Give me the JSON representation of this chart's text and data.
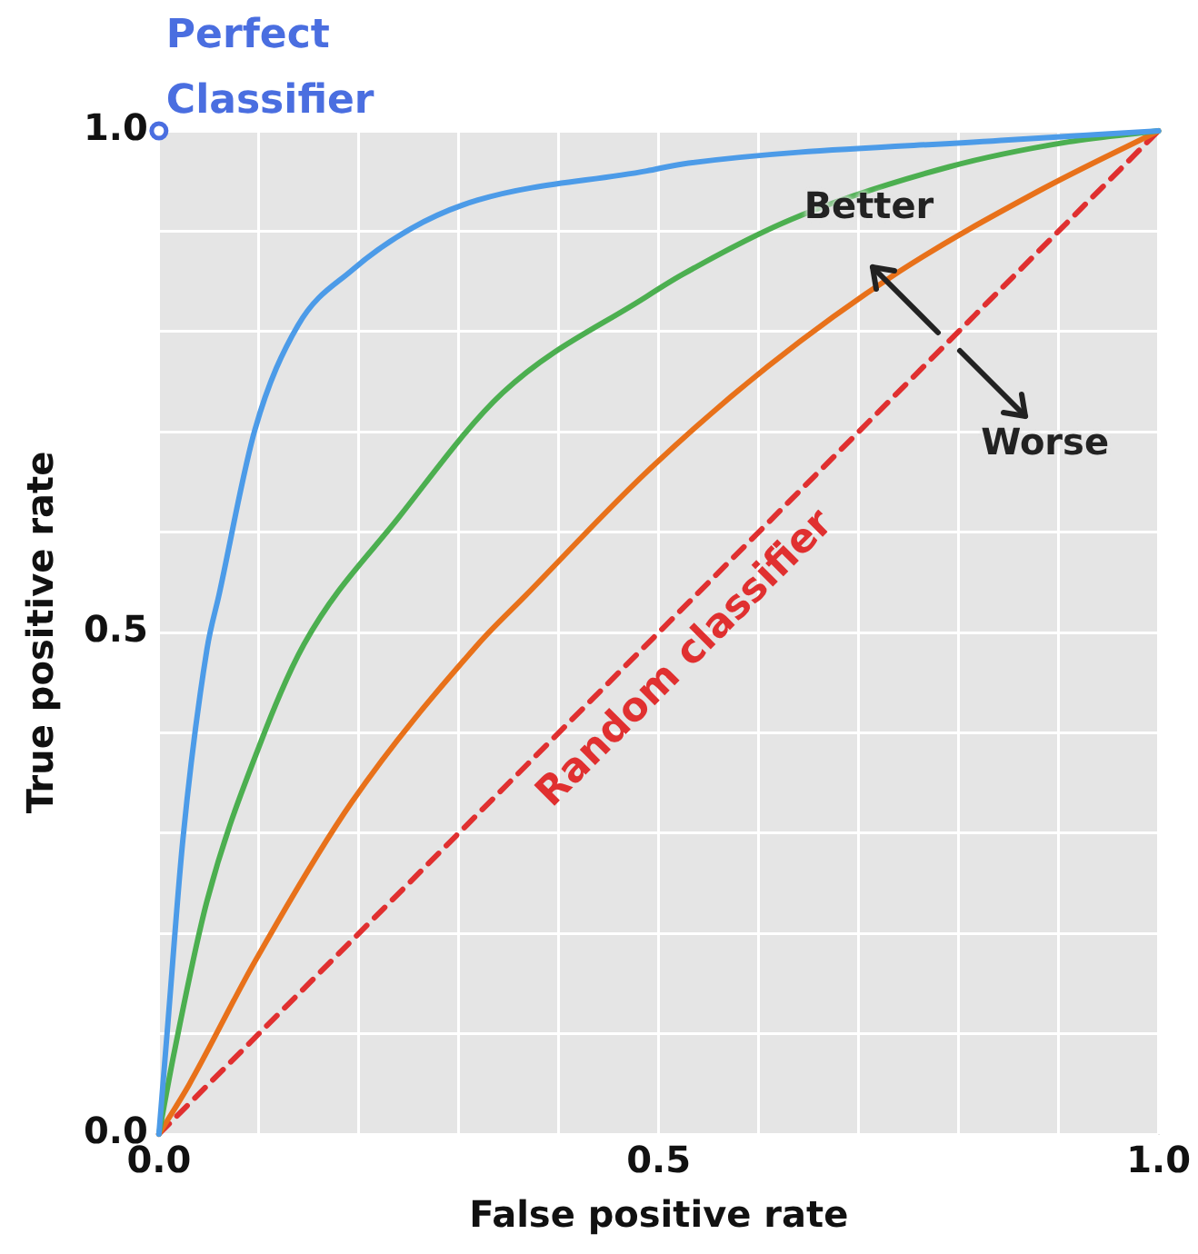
{
  "chart_data": {
    "type": "line",
    "xlabel": "False positive rate",
    "ylabel": "True positive rate",
    "annotations": [
      "Better",
      {
        "text": "Worse",
        "x": 0.79,
        "y": 0.79
      }
    ],
    "xlim": [
      0,
      1
    ],
    "ylim": [
      0,
      1
    ],
    "xticks": [
      {
        "value": 0,
        "label": "0.0"
      },
      {
        "value": 0.1,
        "label": null
      },
      {
        "value": 0.2,
        "label": null
      },
      {
        "value": 0.3,
        "label": null
      },
      {
        "value": 0.4,
        "label": null
      },
      {
        "value": 0.5,
        "label": "0.5"
      },
      {
        "value": 0.6,
        "label": null
      },
      {
        "value": 0.7,
        "label": null
      },
      {
        "value": 0.8,
        "label": null
      },
      {
        "value": 0.9,
        "label": null
      },
      {
        "value": 1,
        "label": "1.0"
      }
    ],
    "yticks": [
      {
        "value": 0,
        "label": "0.0"
      },
      {
        "value": 0.1,
        "label": null
      },
      {
        "value": 0.2,
        "label": null
      },
      {
        "value": 0.3,
        "label": null
      },
      {
        "value": 0.4,
        "label": null
      },
      {
        "value": 0.5,
        "label": "0.5"
      },
      {
        "value": 0.6,
        "label": null
      },
      {
        "value": 0.7,
        "label": null
      },
      {
        "value": 0.8,
        "label": null
      },
      {
        "value": 0.9,
        "label": null
      },
      {
        "value": 1,
        "label": "1.0"
      }
    ],
    "grid": true,
    "legend": false,
    "marker": "none",
    "series": [
      {
        "type": "line",
        "color": "#4c9be8",
        "x": [
          0,
          0.009,
          0.024,
          0.048,
          0.06,
          0.096,
          0.139,
          0.193,
          0.253,
          0.319,
          0.488,
          0.524,
          0.85,
          1
        ],
        "values": [
          0,
          0.111,
          0.294,
          0.483,
          0.537,
          0.702,
          0.806,
          0.861,
          0.903,
          0.931,
          0.96,
          0.967,
          0.991,
          1
        ]
      },
      {
        "type": "line",
        "color": "#4caf50",
        "x": [
          0,
          0.015,
          0.048,
          0.102,
          0.145,
          0.241,
          0.344,
          0.488,
          0.524,
          0.633,
          0.79,
          0.91,
          1
        ],
        "values": [
          0,
          0.08,
          0.232,
          0.391,
          0.488,
          0.616,
          0.739,
          0.835,
          0.857,
          0.912,
          0.964,
          0.989,
          1
        ]
      },
      {
        "type": "line",
        "color": "#e8711a",
        "x": [
          0,
          0.03,
          0.096,
          0.193,
          0.319,
          0.367,
          0.488,
          0.609,
          0.741,
          0.88,
          1
        ],
        "values": [
          0,
          0.049,
          0.172,
          0.331,
          0.488,
          0.537,
          0.66,
          0.765,
          0.86,
          0.94,
          1
        ]
      },
      {
        "type": "line",
        "name": "Random classifier",
        "color": "#e03030",
        "line_style": "dashed",
        "x": [
          0,
          1
        ],
        "values": [
          0,
          1
        ]
      },
      {
        "type": "scatter",
        "name": "Perfect Classifier",
        "color": "#4a6ee0",
        "marker": "circle",
        "x": [
          0
        ],
        "values": [
          1
        ]
      }
    ]
  }
}
